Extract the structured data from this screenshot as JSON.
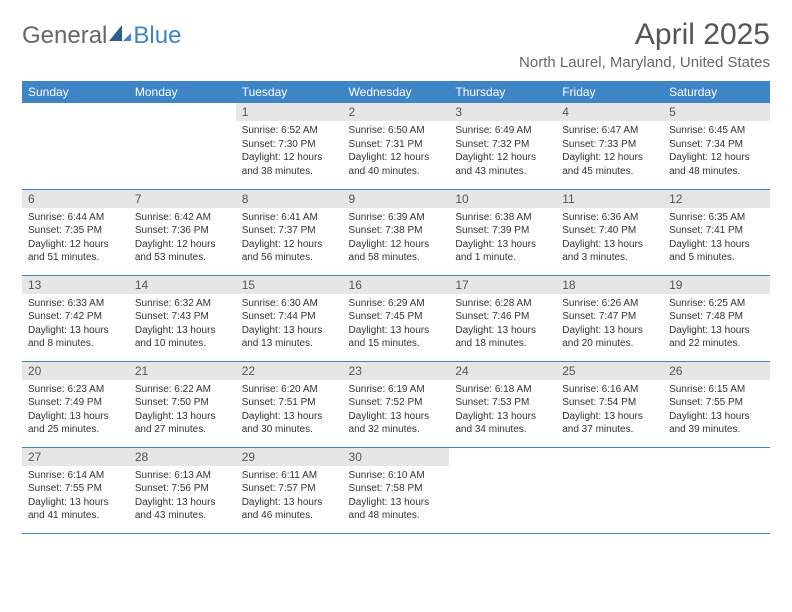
{
  "logo": {
    "part1": "General",
    "part2": "Blue"
  },
  "title": "April 2025",
  "location": "North Laurel, Maryland, United States",
  "colors": {
    "header_bg": "#3d85c6",
    "header_text": "#ffffff",
    "daynum_bg": "#e6e6e6",
    "row_border": "#3d85c6",
    "body_text": "#333333",
    "title_text": "#555555"
  },
  "weekdays": [
    "Sunday",
    "Monday",
    "Tuesday",
    "Wednesday",
    "Thursday",
    "Friday",
    "Saturday"
  ],
  "weeks": [
    [
      null,
      null,
      {
        "n": "1",
        "sunrise": "Sunrise: 6:52 AM",
        "sunset": "Sunset: 7:30 PM",
        "daylight": "Daylight: 12 hours and 38 minutes."
      },
      {
        "n": "2",
        "sunrise": "Sunrise: 6:50 AM",
        "sunset": "Sunset: 7:31 PM",
        "daylight": "Daylight: 12 hours and 40 minutes."
      },
      {
        "n": "3",
        "sunrise": "Sunrise: 6:49 AM",
        "sunset": "Sunset: 7:32 PM",
        "daylight": "Daylight: 12 hours and 43 minutes."
      },
      {
        "n": "4",
        "sunrise": "Sunrise: 6:47 AM",
        "sunset": "Sunset: 7:33 PM",
        "daylight": "Daylight: 12 hours and 45 minutes."
      },
      {
        "n": "5",
        "sunrise": "Sunrise: 6:45 AM",
        "sunset": "Sunset: 7:34 PM",
        "daylight": "Daylight: 12 hours and 48 minutes."
      }
    ],
    [
      {
        "n": "6",
        "sunrise": "Sunrise: 6:44 AM",
        "sunset": "Sunset: 7:35 PM",
        "daylight": "Daylight: 12 hours and 51 minutes."
      },
      {
        "n": "7",
        "sunrise": "Sunrise: 6:42 AM",
        "sunset": "Sunset: 7:36 PM",
        "daylight": "Daylight: 12 hours and 53 minutes."
      },
      {
        "n": "8",
        "sunrise": "Sunrise: 6:41 AM",
        "sunset": "Sunset: 7:37 PM",
        "daylight": "Daylight: 12 hours and 56 minutes."
      },
      {
        "n": "9",
        "sunrise": "Sunrise: 6:39 AM",
        "sunset": "Sunset: 7:38 PM",
        "daylight": "Daylight: 12 hours and 58 minutes."
      },
      {
        "n": "10",
        "sunrise": "Sunrise: 6:38 AM",
        "sunset": "Sunset: 7:39 PM",
        "daylight": "Daylight: 13 hours and 1 minute."
      },
      {
        "n": "11",
        "sunrise": "Sunrise: 6:36 AM",
        "sunset": "Sunset: 7:40 PM",
        "daylight": "Daylight: 13 hours and 3 minutes."
      },
      {
        "n": "12",
        "sunrise": "Sunrise: 6:35 AM",
        "sunset": "Sunset: 7:41 PM",
        "daylight": "Daylight: 13 hours and 5 minutes."
      }
    ],
    [
      {
        "n": "13",
        "sunrise": "Sunrise: 6:33 AM",
        "sunset": "Sunset: 7:42 PM",
        "daylight": "Daylight: 13 hours and 8 minutes."
      },
      {
        "n": "14",
        "sunrise": "Sunrise: 6:32 AM",
        "sunset": "Sunset: 7:43 PM",
        "daylight": "Daylight: 13 hours and 10 minutes."
      },
      {
        "n": "15",
        "sunrise": "Sunrise: 6:30 AM",
        "sunset": "Sunset: 7:44 PM",
        "daylight": "Daylight: 13 hours and 13 minutes."
      },
      {
        "n": "16",
        "sunrise": "Sunrise: 6:29 AM",
        "sunset": "Sunset: 7:45 PM",
        "daylight": "Daylight: 13 hours and 15 minutes."
      },
      {
        "n": "17",
        "sunrise": "Sunrise: 6:28 AM",
        "sunset": "Sunset: 7:46 PM",
        "daylight": "Daylight: 13 hours and 18 minutes."
      },
      {
        "n": "18",
        "sunrise": "Sunrise: 6:26 AM",
        "sunset": "Sunset: 7:47 PM",
        "daylight": "Daylight: 13 hours and 20 minutes."
      },
      {
        "n": "19",
        "sunrise": "Sunrise: 6:25 AM",
        "sunset": "Sunset: 7:48 PM",
        "daylight": "Daylight: 13 hours and 22 minutes."
      }
    ],
    [
      {
        "n": "20",
        "sunrise": "Sunrise: 6:23 AM",
        "sunset": "Sunset: 7:49 PM",
        "daylight": "Daylight: 13 hours and 25 minutes."
      },
      {
        "n": "21",
        "sunrise": "Sunrise: 6:22 AM",
        "sunset": "Sunset: 7:50 PM",
        "daylight": "Daylight: 13 hours and 27 minutes."
      },
      {
        "n": "22",
        "sunrise": "Sunrise: 6:20 AM",
        "sunset": "Sunset: 7:51 PM",
        "daylight": "Daylight: 13 hours and 30 minutes."
      },
      {
        "n": "23",
        "sunrise": "Sunrise: 6:19 AM",
        "sunset": "Sunset: 7:52 PM",
        "daylight": "Daylight: 13 hours and 32 minutes."
      },
      {
        "n": "24",
        "sunrise": "Sunrise: 6:18 AM",
        "sunset": "Sunset: 7:53 PM",
        "daylight": "Daylight: 13 hours and 34 minutes."
      },
      {
        "n": "25",
        "sunrise": "Sunrise: 6:16 AM",
        "sunset": "Sunset: 7:54 PM",
        "daylight": "Daylight: 13 hours and 37 minutes."
      },
      {
        "n": "26",
        "sunrise": "Sunrise: 6:15 AM",
        "sunset": "Sunset: 7:55 PM",
        "daylight": "Daylight: 13 hours and 39 minutes."
      }
    ],
    [
      {
        "n": "27",
        "sunrise": "Sunrise: 6:14 AM",
        "sunset": "Sunset: 7:55 PM",
        "daylight": "Daylight: 13 hours and 41 minutes."
      },
      {
        "n": "28",
        "sunrise": "Sunrise: 6:13 AM",
        "sunset": "Sunset: 7:56 PM",
        "daylight": "Daylight: 13 hours and 43 minutes."
      },
      {
        "n": "29",
        "sunrise": "Sunrise: 6:11 AM",
        "sunset": "Sunset: 7:57 PM",
        "daylight": "Daylight: 13 hours and 46 minutes."
      },
      {
        "n": "30",
        "sunrise": "Sunrise: 6:10 AM",
        "sunset": "Sunset: 7:58 PM",
        "daylight": "Daylight: 13 hours and 48 minutes."
      },
      null,
      null,
      null
    ]
  ]
}
